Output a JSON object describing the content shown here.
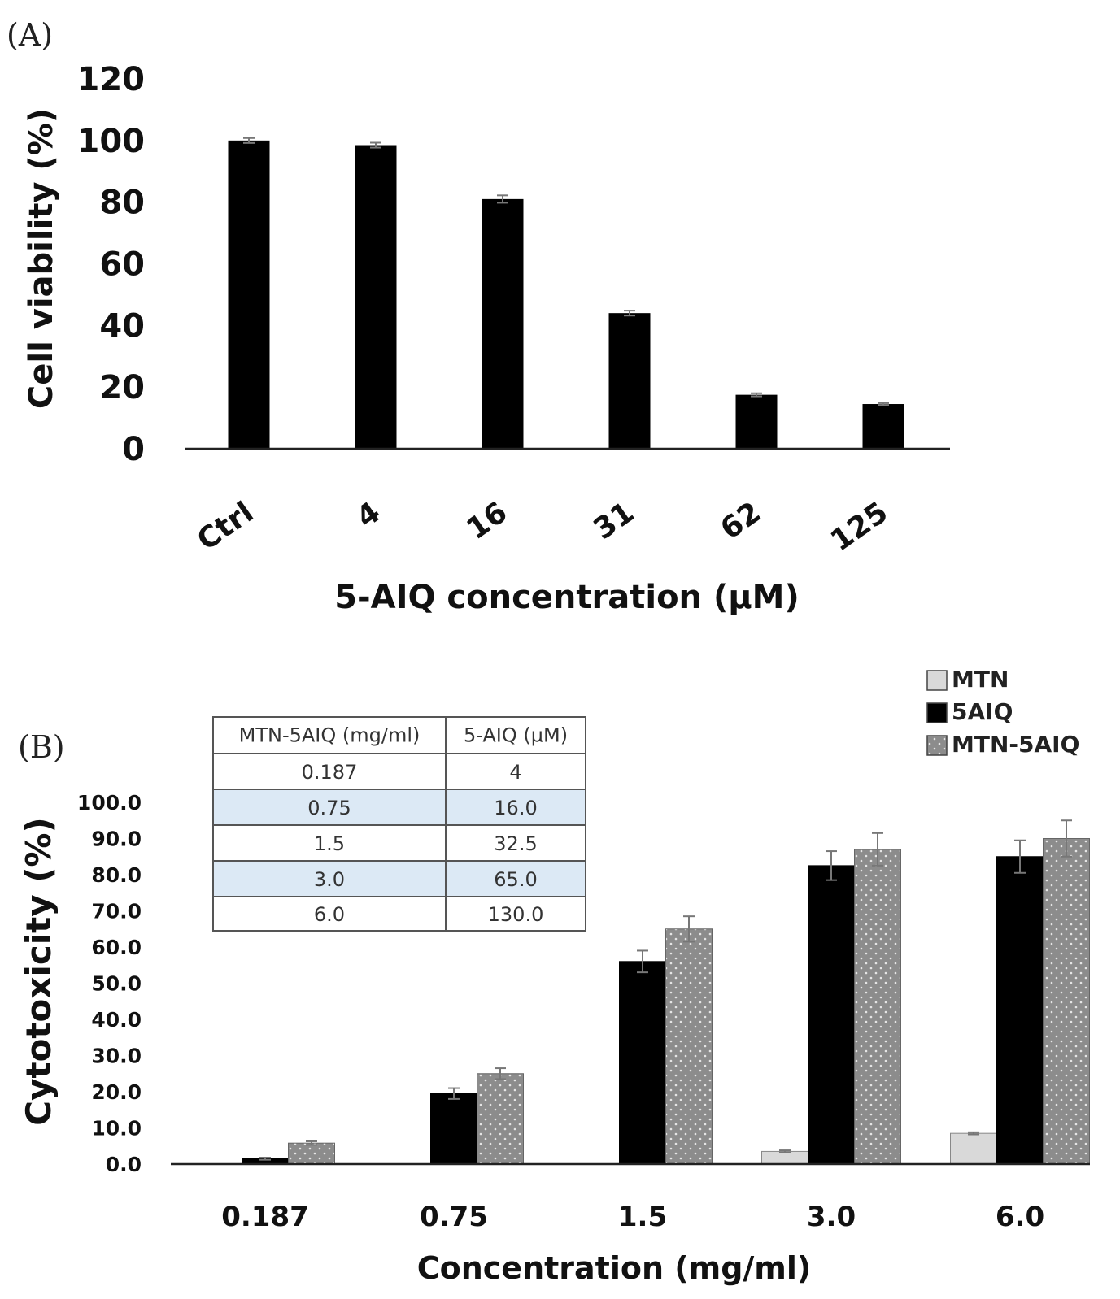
{
  "chart_data": [
    {
      "panel": "(A)",
      "type": "bar",
      "title": "",
      "xlabel": "5-AIQ concentration (µM)",
      "ylabel": "Cell viability (%)",
      "ylim": [
        0,
        120
      ],
      "yticks": [
        "0",
        "20",
        "40",
        "60",
        "80",
        "100",
        "120"
      ],
      "categories": [
        "Ctrl",
        "4",
        "16",
        "31",
        "62",
        "125"
      ],
      "series": [
        {
          "name": "Cell viability",
          "color": "#000000",
          "values": [
            100,
            98.5,
            81,
            44,
            17.5,
            14.5
          ],
          "errors": [
            0.8,
            0.8,
            1.2,
            0.8,
            0.5,
            0.3
          ]
        }
      ],
      "grid": false
    },
    {
      "panel": "(B)",
      "type": "bar",
      "title": "",
      "xlabel": "Concentration (mg/ml)",
      "ylabel": "Cytotoxicity (%)",
      "ylim": [
        0,
        100
      ],
      "yticks": [
        "0.0",
        "10.0",
        "20.0",
        "30.0",
        "40.0",
        "50.0",
        "60.0",
        "70.0",
        "80.0",
        "90.0",
        "100.0"
      ],
      "categories": [
        "0.187",
        "0.75",
        "1.5",
        "3.0",
        "6.0"
      ],
      "legend_position": "top-right",
      "series": [
        {
          "name": "MTN",
          "color": "#d9d9d9",
          "values": [
            0,
            0,
            0,
            3.5,
            8.5
          ],
          "errors": [
            0,
            0,
            0,
            0.3,
            0.3
          ]
        },
        {
          "name": "5AIQ",
          "color": "#000000",
          "values": [
            1.5,
            19.5,
            56,
            82.5,
            85
          ],
          "errors": [
            0.3,
            1.5,
            3,
            4,
            4.5
          ]
        },
        {
          "name": "MTN-5AIQ",
          "color": "#8c8c8c",
          "values": [
            5.8,
            25,
            65,
            87,
            90
          ],
          "errors": [
            0.5,
            1.5,
            3.5,
            4.5,
            5
          ]
        }
      ],
      "grid": false,
      "inset_table": {
        "headers": [
          "MTN-5AIQ (mg/ml)",
          "5-AIQ (µM)"
        ],
        "rows": [
          [
            "0.187",
            "4"
          ],
          [
            "0.75",
            "16.0"
          ],
          [
            "1.5",
            "32.5"
          ],
          [
            "3.0",
            "65.0"
          ],
          [
            "6.0",
            "130.0"
          ]
        ],
        "stripe_color": "#dce9f5"
      }
    }
  ]
}
